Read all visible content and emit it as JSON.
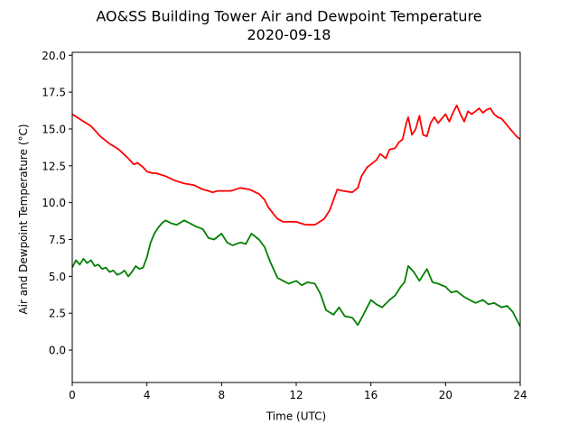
{
  "chart_data": {
    "type": "line",
    "title": "AO&SS Building Tower Air and Dewpoint Temperature",
    "subtitle": "2020-09-18",
    "xlabel": "Time (UTC)",
    "ylabel": "Air and Dewpoint Temperature (°C)",
    "xlim": [
      0,
      24
    ],
    "ylim": [
      -2.2,
      20.2
    ],
    "xticks": [
      0,
      4,
      8,
      12,
      16,
      20,
      24
    ],
    "xtick_labels": [
      "0",
      "4",
      "8",
      "12",
      "16",
      "20",
      "24"
    ],
    "yticks": [
      0,
      2.5,
      5,
      7.5,
      10,
      12.5,
      15,
      17.5,
      20
    ],
    "ytick_labels": [
      "0.0",
      "2.5",
      "5.0",
      "7.5",
      "10.0",
      "12.5",
      "15.0",
      "17.5",
      "20.0"
    ],
    "grid": false,
    "series": [
      {
        "color": "#ff0000",
        "x": [
          0,
          0.5,
          1,
          1.5,
          2,
          2.5,
          3,
          3.3,
          3.5,
          3.8,
          4,
          4.3,
          4.5,
          5,
          5.5,
          6,
          6.5,
          7,
          7.3,
          7.5,
          7.8,
          8,
          8.5,
          9,
          9.5,
          10,
          10.3,
          10.5,
          10.8,
          11,
          11.3,
          11.5,
          12,
          12.5,
          13,
          13.5,
          13.8,
          14,
          14.2,
          14.5,
          15,
          15.3,
          15.5,
          15.8,
          16,
          16.3,
          16.5,
          16.8,
          17,
          17.3,
          17.5,
          17.7,
          17.9,
          18,
          18.2,
          18.4,
          18.6,
          18.8,
          19,
          19.2,
          19.4,
          19.6,
          19.8,
          20,
          20.2,
          20.4,
          20.6,
          20.8,
          21,
          21.2,
          21.4,
          21.6,
          21.8,
          22,
          22.2,
          22.4,
          22.6,
          22.8,
          23,
          23.2,
          23.4,
          23.6,
          23.8,
          24
        ],
        "y": [
          16.0,
          15.6,
          15.2,
          14.5,
          14.0,
          13.6,
          13.0,
          12.6,
          12.7,
          12.4,
          12.1,
          12.0,
          12.0,
          11.8,
          11.5,
          11.3,
          11.2,
          10.9,
          10.8,
          10.7,
          10.8,
          10.8,
          10.8,
          11.0,
          10.9,
          10.6,
          10.2,
          9.7,
          9.2,
          8.9,
          8.7,
          8.7,
          8.7,
          8.5,
          8.5,
          8.9,
          9.5,
          10.2,
          10.9,
          10.8,
          10.7,
          11.0,
          11.8,
          12.4,
          12.6,
          12.9,
          13.3,
          13.0,
          13.6,
          13.7,
          14.1,
          14.3,
          15.4,
          15.8,
          14.6,
          15.0,
          15.9,
          14.6,
          14.5,
          15.4,
          15.8,
          15.4,
          15.7,
          16.0,
          15.5,
          16.1,
          16.6,
          16.0,
          15.5,
          16.2,
          16.0,
          16.2,
          16.4,
          16.1,
          16.3,
          16.4,
          16.0,
          15.8,
          15.7,
          15.4,
          15.1,
          14.8,
          14.5,
          14.3
        ]
      },
      {
        "color": "#008000",
        "x": [
          0,
          0.2,
          0.4,
          0.6,
          0.8,
          1,
          1.2,
          1.4,
          1.6,
          1.8,
          2,
          2.2,
          2.4,
          2.6,
          2.8,
          3,
          3.2,
          3.4,
          3.6,
          3.8,
          4,
          4.2,
          4.4,
          4.6,
          4.8,
          5,
          5.3,
          5.6,
          6,
          6.3,
          6.6,
          7,
          7.3,
          7.6,
          8,
          8.3,
          8.6,
          9,
          9.3,
          9.6,
          10,
          10.3,
          10.6,
          11,
          11.3,
          11.6,
          12,
          12.3,
          12.6,
          13,
          13.3,
          13.6,
          14,
          14.3,
          14.6,
          15,
          15.3,
          15.6,
          16,
          16.3,
          16.6,
          17,
          17.3,
          17.6,
          17.8,
          18,
          18.3,
          18.6,
          19,
          19.3,
          19.6,
          20,
          20.3,
          20.6,
          21,
          21.3,
          21.6,
          22,
          22.3,
          22.6,
          23,
          23.3,
          23.6,
          24
        ],
        "y": [
          5.6,
          6.1,
          5.8,
          6.2,
          5.9,
          6.1,
          5.7,
          5.8,
          5.5,
          5.6,
          5.3,
          5.4,
          5.1,
          5.2,
          5.4,
          5.0,
          5.3,
          5.7,
          5.5,
          5.6,
          6.3,
          7.3,
          7.9,
          8.3,
          8.6,
          8.8,
          8.6,
          8.5,
          8.8,
          8.6,
          8.4,
          8.2,
          7.6,
          7.5,
          7.9,
          7.3,
          7.1,
          7.3,
          7.2,
          7.9,
          7.5,
          7.0,
          6.0,
          4.9,
          4.7,
          4.5,
          4.7,
          4.4,
          4.6,
          4.5,
          3.8,
          2.7,
          2.4,
          2.9,
          2.3,
          2.2,
          1.7,
          2.4,
          3.4,
          3.1,
          2.9,
          3.4,
          3.7,
          4.3,
          4.6,
          5.7,
          5.3,
          4.7,
          5.5,
          4.6,
          4.5,
          4.3,
          3.9,
          4.0,
          3.6,
          3.4,
          3.2,
          3.4,
          3.1,
          3.2,
          2.9,
          3.0,
          2.6,
          1.6
        ]
      }
    ]
  }
}
